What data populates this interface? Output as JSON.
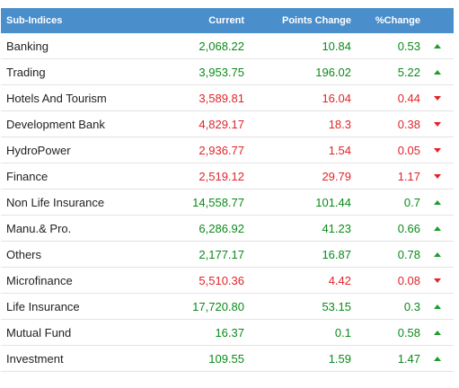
{
  "header": {
    "name": "Sub-Indices",
    "current": "Current",
    "points_change": "Points Change",
    "pct_change": "%Change"
  },
  "colors": {
    "header_bg": "#4a8ecb",
    "up": "#0a8a1a",
    "down": "#e0242a"
  },
  "rows": [
    {
      "name": "Banking",
      "current": "2,068.22",
      "points": "10.84",
      "pct": "0.53",
      "dir": "up",
      "icon": "arrow-up-icon"
    },
    {
      "name": "Trading",
      "current": "3,953.75",
      "points": "196.02",
      "pct": "5.22",
      "dir": "up",
      "icon": "arrow-up-icon"
    },
    {
      "name": "Hotels And Tourism",
      "current": "3,589.81",
      "points": "16.04",
      "pct": "0.44",
      "dir": "down",
      "icon": "arrow-down-icon"
    },
    {
      "name": "Development Bank",
      "current": "4,829.17",
      "points": "18.3",
      "pct": "0.38",
      "dir": "down",
      "icon": "arrow-down-icon"
    },
    {
      "name": "HydroPower",
      "current": "2,936.77",
      "points": "1.54",
      "pct": "0.05",
      "dir": "down",
      "icon": "arrow-down-icon"
    },
    {
      "name": "Finance",
      "current": "2,519.12",
      "points": "29.79",
      "pct": "1.17",
      "dir": "down",
      "icon": "arrow-down-icon"
    },
    {
      "name": "Non Life Insurance",
      "current": "14,558.77",
      "points": "101.44",
      "pct": "0.7",
      "dir": "up",
      "icon": "arrow-up-icon"
    },
    {
      "name": "Manu.& Pro.",
      "current": "6,286.92",
      "points": "41.23",
      "pct": "0.66",
      "dir": "up",
      "icon": "arrow-up-icon"
    },
    {
      "name": "Others",
      "current": "2,177.17",
      "points": "16.87",
      "pct": "0.78",
      "dir": "up",
      "icon": "arrow-up-icon"
    },
    {
      "name": "Microfinance",
      "current": "5,510.36",
      "points": "4.42",
      "pct": "0.08",
      "dir": "down",
      "icon": "arrow-down-icon"
    },
    {
      "name": "Life Insurance",
      "current": "17,720.80",
      "points": "53.15",
      "pct": "0.3",
      "dir": "up",
      "icon": "arrow-up-icon"
    },
    {
      "name": "Mutual Fund",
      "current": "16.37",
      "points": "0.1",
      "pct": "0.58",
      "dir": "up",
      "icon": "arrow-up-icon"
    },
    {
      "name": "Investment",
      "current": "109.55",
      "points": "1.59",
      "pct": "1.47",
      "dir": "up",
      "icon": "arrow-up-icon"
    }
  ]
}
